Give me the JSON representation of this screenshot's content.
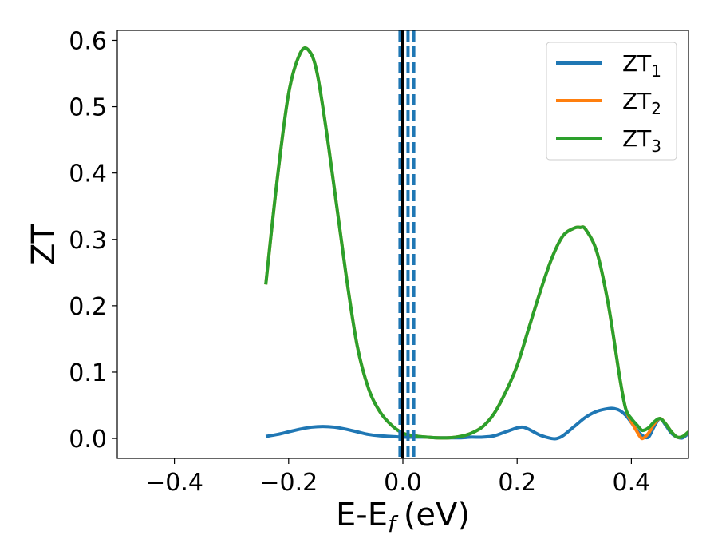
{
  "chart_data": {
    "type": "line",
    "xlabel": "E-E",
    "xlabel_sub": "f",
    "xlabel_unit": "(eV)",
    "ylabel": "ZT",
    "xlim": [
      -0.5,
      0.5
    ],
    "ylim": [
      -0.03,
      0.615
    ],
    "xticks": [
      -0.4,
      -0.2,
      0.0,
      0.2,
      0.4
    ],
    "xtick_labels": [
      "−0.4",
      "−0.2",
      "0.0",
      "0.2",
      "0.4"
    ],
    "yticks": [
      0.0,
      0.1,
      0.2,
      0.3,
      0.4,
      0.5,
      0.6
    ],
    "ytick_labels": [
      "0.0",
      "0.1",
      "0.2",
      "0.3",
      "0.4",
      "0.5",
      "0.6"
    ],
    "grid": false,
    "legend_position": "top-right",
    "series": [
      {
        "name": "ZT",
        "name_sub": "1",
        "color": "#1f77b4",
        "x": [
          -0.24,
          -0.22,
          -0.2,
          -0.18,
          -0.16,
          -0.14,
          -0.12,
          -0.1,
          -0.08,
          -0.06,
          -0.04,
          -0.02,
          0.0,
          0.02,
          0.04,
          0.06,
          0.08,
          0.1,
          0.12,
          0.14,
          0.16,
          0.18,
          0.2,
          0.21,
          0.22,
          0.24,
          0.26,
          0.27,
          0.28,
          0.3,
          0.32,
          0.34,
          0.36,
          0.37,
          0.38,
          0.39,
          0.4,
          0.41,
          0.42,
          0.43,
          0.44,
          0.45,
          0.46,
          0.47,
          0.48,
          0.49,
          0.5
        ],
        "y": [
          0.003,
          0.006,
          0.01,
          0.014,
          0.017,
          0.018,
          0.017,
          0.014,
          0.01,
          0.006,
          0.004,
          0.003,
          0.002,
          0.002,
          0.002,
          0.001,
          0.001,
          0.001,
          0.002,
          0.002,
          0.004,
          0.01,
          0.016,
          0.017,
          0.014,
          0.005,
          0.0,
          0.0,
          0.004,
          0.018,
          0.032,
          0.041,
          0.045,
          0.045,
          0.042,
          0.035,
          0.024,
          0.012,
          0.004,
          0.002,
          0.018,
          0.03,
          0.02,
          0.008,
          0.002,
          0.001,
          0.008
        ]
      },
      {
        "name": "ZT",
        "name_sub": "2",
        "color": "#ff7f0e",
        "x": [
          -0.24,
          -0.22,
          -0.2,
          -0.18,
          -0.165,
          -0.15,
          -0.13,
          -0.1,
          -0.08,
          -0.06,
          -0.04,
          -0.02,
          0.0,
          0.02,
          0.04,
          0.06,
          0.08,
          0.1,
          0.12,
          0.14,
          0.16,
          0.18,
          0.2,
          0.22,
          0.24,
          0.26,
          0.28,
          0.3,
          0.31,
          0.32,
          0.34,
          0.36,
          0.38,
          0.39,
          0.4,
          0.41,
          0.415,
          0.42,
          0.43,
          0.44,
          0.45,
          0.46,
          0.47,
          0.48,
          0.49,
          0.5
        ],
        "y": [
          0.232,
          0.39,
          0.52,
          0.58,
          0.585,
          0.55,
          0.44,
          0.25,
          0.14,
          0.075,
          0.04,
          0.02,
          0.008,
          0.004,
          0.002,
          0.001,
          0.001,
          0.003,
          0.008,
          0.018,
          0.038,
          0.07,
          0.11,
          0.165,
          0.22,
          0.27,
          0.305,
          0.317,
          0.318,
          0.315,
          0.28,
          0.2,
          0.09,
          0.045,
          0.025,
          0.01,
          0.003,
          0.0,
          0.008,
          0.022,
          0.03,
          0.022,
          0.01,
          0.002,
          0.003,
          0.01
        ]
      },
      {
        "name": "ZT",
        "name_sub": "3",
        "color": "#2ca02c",
        "x": [
          -0.24,
          -0.22,
          -0.2,
          -0.18,
          -0.165,
          -0.15,
          -0.13,
          -0.1,
          -0.08,
          -0.06,
          -0.04,
          -0.02,
          0.0,
          0.02,
          0.04,
          0.06,
          0.08,
          0.1,
          0.12,
          0.14,
          0.16,
          0.18,
          0.2,
          0.22,
          0.24,
          0.26,
          0.28,
          0.3,
          0.31,
          0.32,
          0.34,
          0.36,
          0.38,
          0.39,
          0.4,
          0.41,
          0.415,
          0.42,
          0.43,
          0.44,
          0.45,
          0.46,
          0.47,
          0.48,
          0.49,
          0.5
        ],
        "y": [
          0.232,
          0.39,
          0.52,
          0.58,
          0.585,
          0.55,
          0.44,
          0.25,
          0.14,
          0.075,
          0.04,
          0.02,
          0.008,
          0.004,
          0.002,
          0.001,
          0.001,
          0.003,
          0.008,
          0.018,
          0.038,
          0.07,
          0.11,
          0.165,
          0.22,
          0.27,
          0.305,
          0.317,
          0.318,
          0.315,
          0.28,
          0.2,
          0.09,
          0.045,
          0.03,
          0.02,
          0.015,
          0.012,
          0.016,
          0.025,
          0.03,
          0.022,
          0.01,
          0.002,
          0.003,
          0.01
        ]
      }
    ],
    "vlines": [
      {
        "x": -0.005,
        "color": "#1f77b4",
        "style": "dashed"
      },
      {
        "x": 0.0,
        "color": "#000000",
        "style": "solid"
      },
      {
        "x": 0.009,
        "color": "#1f77b4",
        "style": "dashed"
      },
      {
        "x": 0.019,
        "color": "#1f77b4",
        "style": "dashed"
      }
    ]
  }
}
